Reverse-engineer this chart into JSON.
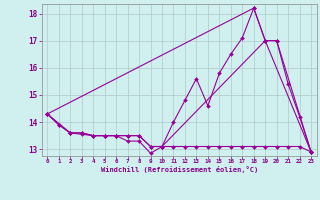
{
  "xlabel": "Windchill (Refroidissement éolien,°C)",
  "bg_color": "#cff0ee",
  "grid_color": "#b0c8c8",
  "line_color": "#990099",
  "xlim": [
    -0.5,
    23.5
  ],
  "ylim": [
    12.75,
    18.35
  ],
  "xticks": [
    0,
    1,
    2,
    3,
    4,
    5,
    6,
    7,
    8,
    9,
    10,
    11,
    12,
    13,
    14,
    15,
    16,
    17,
    18,
    19,
    20,
    21,
    22,
    23
  ],
  "yticks": [
    13,
    14,
    15,
    16,
    17,
    18
  ],
  "series1_x": [
    0,
    1,
    2,
    3,
    4,
    5,
    6,
    7,
    8,
    9,
    10,
    11,
    12,
    13,
    14,
    15,
    16,
    17,
    18,
    19,
    20,
    21,
    22,
    23
  ],
  "series1_y": [
    14.3,
    13.9,
    13.6,
    13.6,
    13.5,
    13.5,
    13.5,
    13.3,
    13.3,
    12.85,
    13.1,
    13.1,
    13.1,
    13.1,
    13.1,
    13.1,
    13.1,
    13.1,
    13.1,
    13.1,
    13.1,
    13.1,
    13.1,
    12.9
  ],
  "series2_x": [
    0,
    1,
    2,
    3,
    4,
    5,
    6,
    7,
    8,
    9,
    10,
    11,
    12,
    13,
    14,
    15,
    16,
    17,
    18,
    19,
    20,
    21,
    22,
    23
  ],
  "series2_y": [
    14.3,
    13.9,
    13.6,
    13.6,
    13.5,
    13.5,
    13.5,
    13.5,
    13.5,
    13.1,
    13.1,
    14.0,
    14.8,
    15.6,
    14.6,
    15.8,
    16.5,
    17.1,
    18.2,
    17.0,
    17.0,
    15.4,
    14.2,
    12.9
  ],
  "series3_x": [
    0,
    2,
    3,
    4,
    5,
    6,
    7,
    8,
    9,
    10,
    19,
    20,
    23
  ],
  "series3_y": [
    14.3,
    13.6,
    13.55,
    13.5,
    13.5,
    13.5,
    13.5,
    13.5,
    13.1,
    13.1,
    17.0,
    17.0,
    12.9
  ],
  "series4_x": [
    0,
    18,
    19,
    23
  ],
  "series4_y": [
    14.3,
    18.2,
    17.0,
    12.9
  ]
}
